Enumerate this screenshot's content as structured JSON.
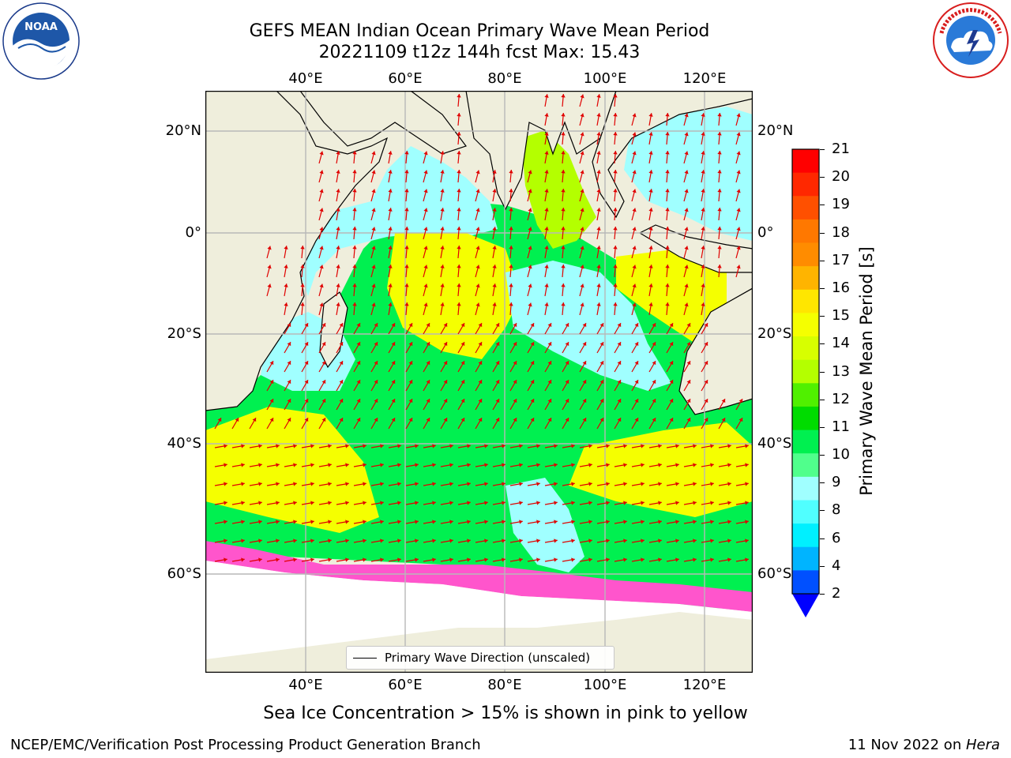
{
  "title": {
    "line1": "GEFS MEAN Indian Ocean Primary Wave Mean Period",
    "line2": "20221109 t12z 144h fcst   Max: 15.43"
  },
  "logos": {
    "left": {
      "icon": "noaa-logo-icon",
      "text": "NOAA",
      "ring_text": "NATIONAL OCEANIC AND ATMOSPHERIC ADMINISTRATION · U.S. DEPARTMENT OF COMMERCE"
    },
    "right": {
      "icon": "nws-logo-icon",
      "ring_text": "NATIONAL WEATHER SERVICE"
    }
  },
  "axes": {
    "lon_ticks": [
      "40°E",
      "60°E",
      "80°E",
      "100°E",
      "120°E"
    ],
    "lat_ticks": [
      "20°N",
      "0°",
      "20°S",
      "40°S",
      "60°S"
    ],
    "lon_range": [
      20,
      129
    ],
    "lat_range": [
      -77,
      27
    ],
    "grid": true
  },
  "colorbar": {
    "label": "Primary Wave Mean Period [s]",
    "ticks": [
      "21",
      "20",
      "19",
      "18",
      "17",
      "16",
      "15",
      "14",
      "13",
      "12",
      "11",
      "10",
      "9",
      "8",
      "6",
      "4",
      "2"
    ],
    "extend": "min",
    "colors": [
      "#ff0000",
      "#ff2800",
      "#ff5000",
      "#ff7800",
      "#ff8c00",
      "#ffb400",
      "#ffe600",
      "#f5ff00",
      "#d7ff00",
      "#b4ff00",
      "#50f000",
      "#00dc00",
      "#00f050",
      "#50ff8c",
      "#a0ffff",
      "#50ffff",
      "#00f0ff",
      "#00b4ff",
      "#0050ff"
    ],
    "under_color": "#0000ff"
  },
  "legend": {
    "label": "Primary Wave Direction (unscaled)"
  },
  "subtitle": "Sea Ice Concentration > 15% is shown in pink to yellow",
  "footer": {
    "left": "NCEP/EMC/Verification Post Processing Product Generation Branch",
    "right_prefix": "11 Nov 2022 on ",
    "right_host": "Hera"
  },
  "colors": {
    "land": "#efeedc",
    "ice_free_white": "#ffffff",
    "arrow": "#e00000",
    "sea_ice": "#ff55cc"
  }
}
